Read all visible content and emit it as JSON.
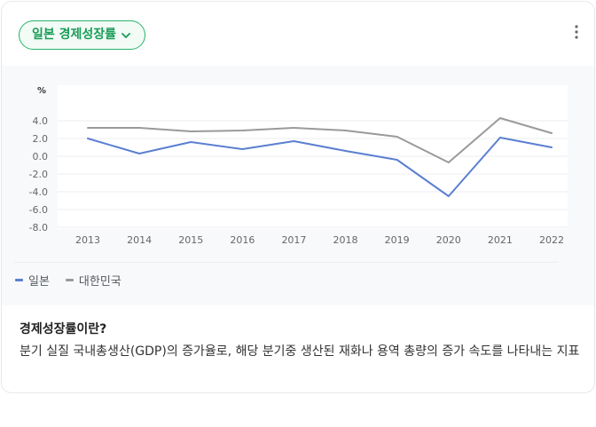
{
  "card": {
    "dropdown_label": "일본 경제성장률",
    "more_icon": "more-vertical-icon",
    "accent_color": "#26b469"
  },
  "description": {
    "title": "경제성장률이란?",
    "text": "분기 실질 국내총생산(GDP)의 증가율로, 해당 분기중 생산된 재화나 용역 총량의 증가 속도를 나타내는 지표"
  },
  "chart_data": {
    "type": "line",
    "ylabel": "%",
    "ylim": [
      -8.0,
      4.0
    ],
    "yticks": [
      "4.0",
      "2.0",
      "0.0",
      "-2.0",
      "-4.0",
      "-6.0",
      "-8.0"
    ],
    "ytick_values": [
      4,
      2,
      0,
      -2,
      -4,
      -6,
      -8
    ],
    "x": [
      "2013",
      "2014",
      "2015",
      "2016",
      "2017",
      "2018",
      "2019",
      "2020",
      "2021",
      "2022"
    ],
    "series": [
      {
        "name": "일본",
        "color": "#5b7fd1",
        "values": [
          2.0,
          0.3,
          1.6,
          0.8,
          1.7,
          0.6,
          -0.4,
          -4.5,
          2.1,
          1.0
        ]
      },
      {
        "name": "대한민국",
        "color": "#9a9a9a",
        "values": [
          3.2,
          3.2,
          2.8,
          2.9,
          3.2,
          2.9,
          2.2,
          -0.7,
          4.3,
          2.6
        ]
      }
    ],
    "grid": true,
    "legend_position": "bottom-left"
  }
}
